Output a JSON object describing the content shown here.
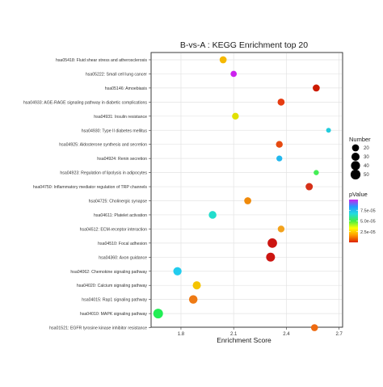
{
  "chart_data": {
    "type": "scatter",
    "title": "B-vs-A : KEGG Enrichment top 20",
    "xlabel": "Enrichment Score",
    "ylabel": "",
    "xlim": [
      1.63,
      2.72
    ],
    "xticks": [
      "1.8",
      "2.1",
      "2.4",
      "2.7"
    ],
    "grid": true,
    "categories": [
      "hsa05418: Fluid shear stress and atherosclerosis",
      "hsa05222: Small cell lung cancer",
      "hsa05146: Amoebiasis",
      "hsa04933: AGE-RAGE signaling pathway in diabetic complications",
      "hsa04931: Insulin resistance",
      "hsa04930: Type II diabetes mellitus",
      "hsa04925: Aldosterone synthesis and secretion",
      "hsa04924: Renin secretion",
      "hsa04923: Regulation of lipolysis in adipocytes",
      "hsa04750: Inflammatory mediator regulation of TRP channels",
      "hsa04725: Cholinergic synapse",
      "hsa04611: Platelet activation",
      "hsa04512: ECM-receptor interaction",
      "hsa04510: Focal adhesion",
      "hsa04360: Axon guidance",
      "hsa04062: Chemokine signaling pathway",
      "hsa04020: Calcium signaling pathway",
      "hsa04015: Rap1 signaling pathway",
      "hsa04010: MAPK signaling pathway",
      "hsa01521: EGFR tyrosine kinase inhibitor resistance"
    ],
    "points": [
      {
        "x": 2.04,
        "number": 20,
        "pvalue": 2.4e-05,
        "color": "#f5b800"
      },
      {
        "x": 2.1,
        "number": 14,
        "pvalue": 9.5e-05,
        "color": "#cc22ee"
      },
      {
        "x": 2.57,
        "number": 20,
        "pvalue": 6e-06,
        "color": "#cc1a00"
      },
      {
        "x": 2.37,
        "number": 20,
        "pvalue": 1e-05,
        "color": "#e63c12"
      },
      {
        "x": 2.11,
        "number": 18,
        "pvalue": 3e-05,
        "color": "#e0e000"
      },
      {
        "x": 2.64,
        "number": 6,
        "pvalue": 5.8e-05,
        "color": "#22ccdd"
      },
      {
        "x": 2.36,
        "number": 18,
        "pvalue": 1.1e-05,
        "color": "#e64a10"
      },
      {
        "x": 2.36,
        "number": 12,
        "pvalue": 5.6e-05,
        "color": "#22b8ee"
      },
      {
        "x": 2.57,
        "number": 8,
        "pvalue": 4.2e-05,
        "color": "#44ee55"
      },
      {
        "x": 2.53,
        "number": 22,
        "pvalue": 7e-06,
        "color": "#d63018"
      },
      {
        "x": 2.18,
        "number": 20,
        "pvalue": 1.7e-05,
        "color": "#f08a0a"
      },
      {
        "x": 1.98,
        "number": 26,
        "pvalue": 5.2e-05,
        "color": "#22ddcc"
      },
      {
        "x": 2.37,
        "number": 18,
        "pvalue": 1.9e-05,
        "color": "#f3a21c"
      },
      {
        "x": 2.32,
        "number": 45,
        "pvalue": 4e-06,
        "color": "#cc1511"
      },
      {
        "x": 2.31,
        "number": 38,
        "pvalue": 4e-06,
        "color": "#cc1511"
      },
      {
        "x": 1.78,
        "number": 32,
        "pvalue": 5.3e-05,
        "color": "#22ccee"
      },
      {
        "x": 1.89,
        "number": 30,
        "pvalue": 2.3e-05,
        "color": "#f5c400"
      },
      {
        "x": 1.87,
        "number": 34,
        "pvalue": 1.8e-05,
        "color": "#ee7a14"
      },
      {
        "x": 1.67,
        "number": 48,
        "pvalue": 4.6e-05,
        "color": "#22ee55"
      },
      {
        "x": 2.56,
        "number": 20,
        "pvalue": 1.5e-05,
        "color": "#ee6a10"
      }
    ],
    "size_legend": {
      "title": "Number",
      "values": [
        20,
        30,
        40,
        50
      ],
      "labels": [
        "20",
        "30",
        "40",
        "50"
      ]
    },
    "color_legend": {
      "title": "pValue",
      "ticks": [
        7.5e-05,
        5e-05,
        2.5e-05
      ],
      "labels": [
        "7.5e-05",
        "5.0e-05",
        "2.5e-05"
      ],
      "range": [
        0,
        0.0001
      ],
      "gradient": [
        "#cc22ee",
        "#2299ff",
        "#22dddd",
        "#44ee44",
        "#ffff00",
        "#ff9900",
        "#dd2200"
      ]
    }
  }
}
